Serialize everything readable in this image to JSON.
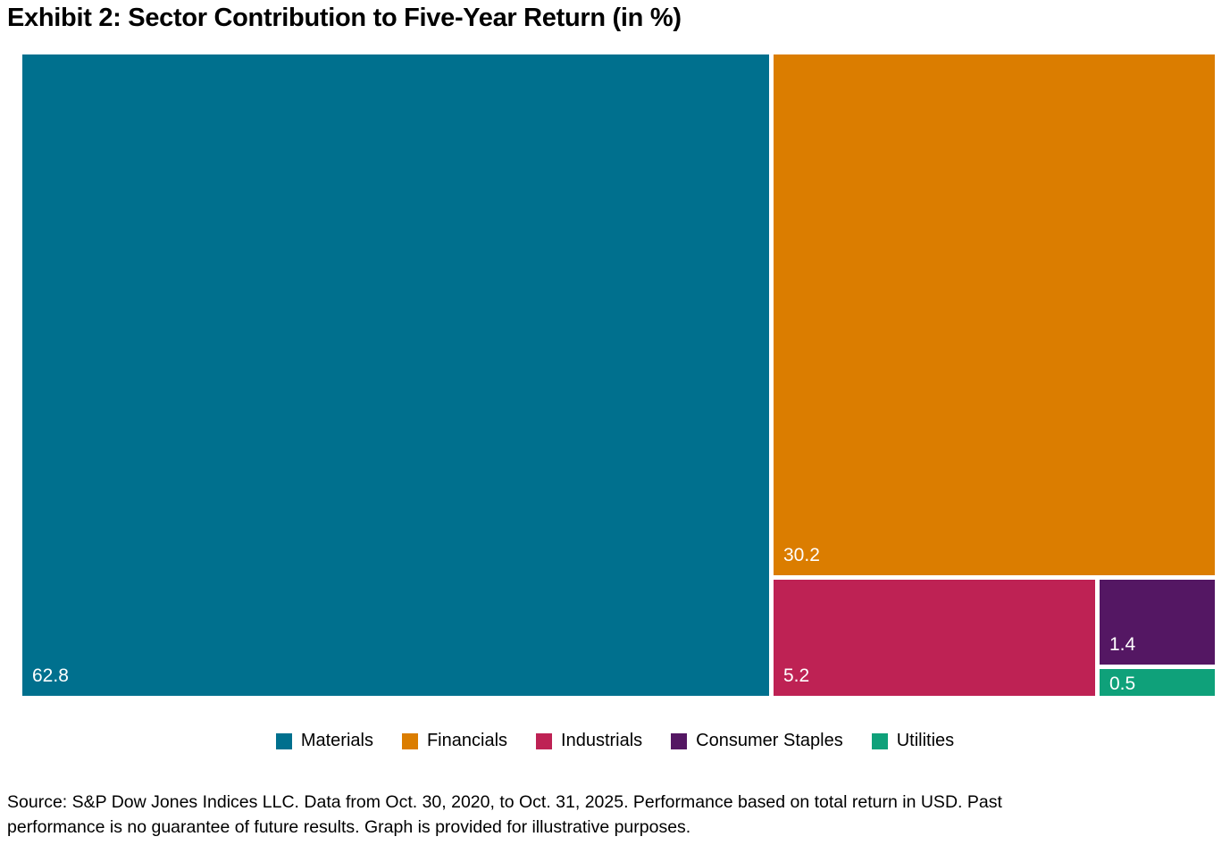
{
  "page": {
    "title": "Exhibit 2: Sector Contribution to Five-Year Return (in %)",
    "source_line1": "Source: S&P Dow Jones Indices LLC. Data from Oct. 30, 2020, to Oct. 31, 2025. Performance based on total return in USD. Past",
    "source_line2": "performance is no guarantee of future results. Graph is provided for illustrative purposes."
  },
  "chart_data": {
    "type": "treemap",
    "title": "Exhibit 2: Sector Contribution to Five-Year Return (in %)",
    "unit": "%",
    "value_label_color": "#ffffff",
    "background": "#ffffff",
    "legend_position": "bottom-center",
    "series": [
      {
        "name": "Materials",
        "value": 62.8,
        "color": "#00708E"
      },
      {
        "name": "Financials",
        "value": 30.2,
        "color": "#DB7D00"
      },
      {
        "name": "Industrials",
        "value": 5.2,
        "color": "#BE2254"
      },
      {
        "name": "Consumer Staples",
        "value": 1.4,
        "color": "#541763"
      },
      {
        "name": "Utilities",
        "value": 0.5,
        "color": "#0FA17A"
      }
    ]
  }
}
